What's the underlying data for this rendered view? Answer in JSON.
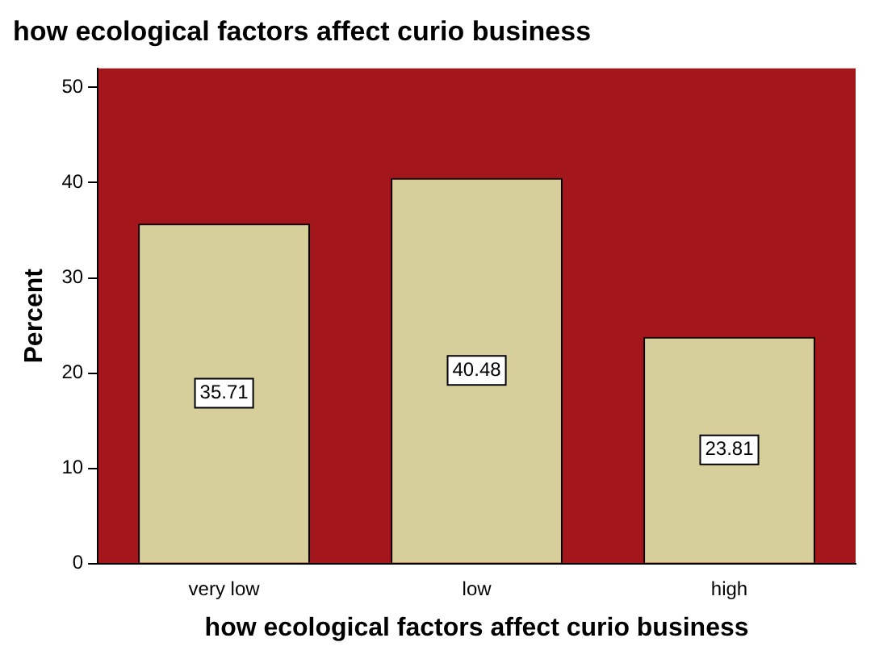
{
  "chart_data": {
    "type": "bar",
    "title": "how ecological factors affect curio business",
    "xlabel": "how ecological factors affect curio business",
    "ylabel": "Percent",
    "categories": [
      "very low",
      "low",
      "high"
    ],
    "values": [
      35.71,
      40.48,
      23.81
    ],
    "color": "#d6cf9c",
    "ylim": [
      0,
      52
    ],
    "yticks": [
      0,
      10,
      20,
      30,
      40,
      50
    ],
    "grid": false,
    "data_labels": true
  }
}
